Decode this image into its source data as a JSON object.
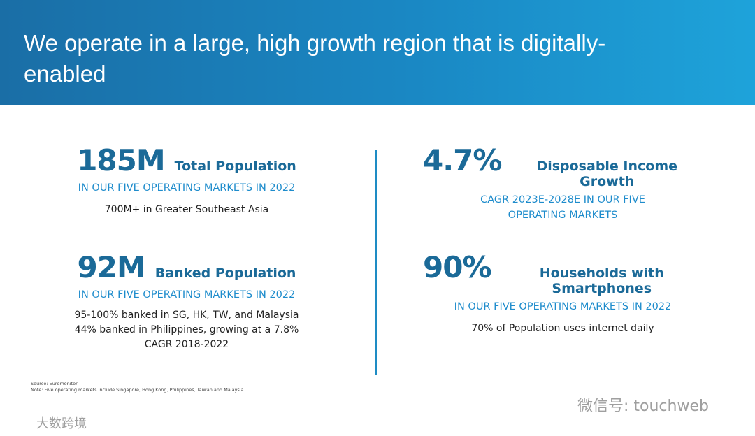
{
  "header": {
    "title": "We operate in a large, high growth region that is digitally-enabled"
  },
  "stats": [
    {
      "number": "185M",
      "label": "Total Population",
      "subtitle": [
        "IN OUR FIVE OPERATING MARKETS IN 2022"
      ],
      "notes": [
        "700M+ in Greater Southeast Asia"
      ]
    },
    {
      "number": "92M",
      "label": "Banked Population",
      "subtitle": [
        "IN OUR FIVE OPERATING MARKETS IN 2022"
      ],
      "notes": [
        "95-100% banked in SG, HK, TW, and Malaysia",
        "44% banked in Philippines, growing at a 7.8%",
        "CAGR 2018-2022"
      ]
    },
    {
      "number": "4.7%",
      "label": "Disposable Income Growth",
      "subtitle": [
        "CAGR 2023E-2028E IN OUR FIVE",
        "OPERATING MARKETS"
      ]
    },
    {
      "number": "90%",
      "label": "Households with Smartphones",
      "subtitle": [
        "IN OUR FIVE OPERATING MARKETS IN 2022"
      ],
      "notes": [
        "70% of Population uses internet daily"
      ]
    }
  ],
  "footer": {
    "source": "Source: Euromonitor",
    "note": "Note: Five operating markets include Singapore, Hong Kong, Philippines, Taiwan and Malaysia"
  },
  "watermarks": [
    "微信号: touchweb",
    "大数跨境"
  ]
}
